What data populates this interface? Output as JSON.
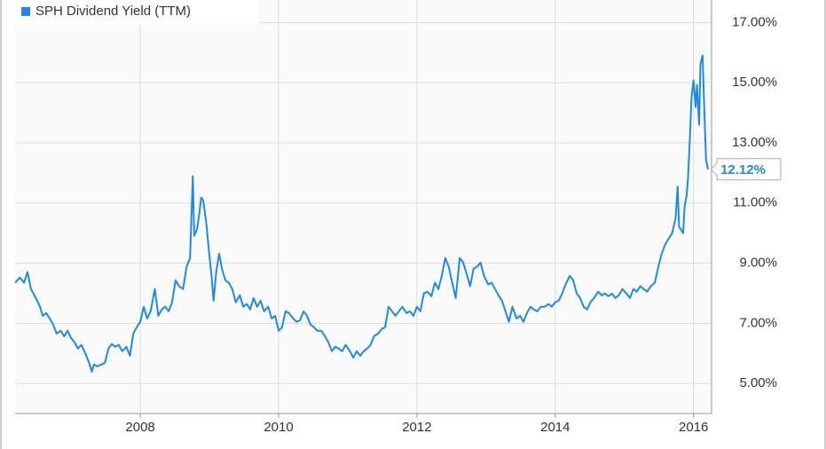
{
  "chart_data": {
    "type": "line",
    "grid": true,
    "legend_position": "top-left",
    "xlim": [
      2006.19,
      2016.26
    ],
    "xticks": [
      2008,
      2010,
      2012,
      2014,
      2016
    ],
    "ylim": [
      4,
      17.75
    ],
    "yticks": [
      {
        "value": 5,
        "label": "5.00%"
      },
      {
        "value": 7,
        "label": "7.00%"
      },
      {
        "value": 9,
        "label": "9.00%"
      },
      {
        "value": 11,
        "label": "11.00%"
      },
      {
        "value": 13,
        "label": "13.00%"
      },
      {
        "value": 15,
        "label": "15.00%"
      },
      {
        "value": 17,
        "label": "17.00%"
      }
    ],
    "annotation": {
      "x": 2016.21,
      "y": 12.12,
      "label": "12.12%"
    },
    "x": [
      2006.19,
      2006.26,
      2006.32,
      2006.37,
      2006.42,
      2006.49,
      2006.55,
      2006.59,
      2006.64,
      2006.69,
      2006.74,
      2006.79,
      2006.85,
      2006.9,
      2006.95,
      2007.0,
      2007.05,
      2007.1,
      2007.15,
      2007.21,
      2007.26,
      2007.3,
      2007.33,
      2007.38,
      2007.44,
      2007.49,
      2007.54,
      2007.59,
      2007.64,
      2007.69,
      2007.74,
      2007.8,
      2007.85,
      2007.9,
      2007.95,
      2008.0,
      2008.05,
      2008.1,
      2008.15,
      2008.21,
      2008.26,
      2008.31,
      2008.36,
      2008.41,
      2008.46,
      2008.51,
      2008.56,
      2008.62,
      2008.67,
      2008.72,
      2008.76,
      2008.78,
      2008.82,
      2008.85,
      2008.88,
      2008.91,
      2008.95,
      2008.99,
      2009.03,
      2009.06,
      2009.1,
      2009.14,
      2009.18,
      2009.23,
      2009.28,
      2009.33,
      2009.38,
      2009.44,
      2009.49,
      2009.54,
      2009.59,
      2009.64,
      2009.69,
      2009.74,
      2009.79,
      2009.85,
      2009.9,
      2009.95,
      2010.0,
      2010.05,
      2010.1,
      2010.15,
      2010.21,
      2010.26,
      2010.31,
      2010.36,
      2010.41,
      2010.46,
      2010.51,
      2010.56,
      2010.62,
      2010.67,
      2010.72,
      2010.77,
      2010.82,
      2010.87,
      2010.92,
      2010.97,
      2011.03,
      2011.08,
      2011.13,
      2011.18,
      2011.23,
      2011.28,
      2011.33,
      2011.38,
      2011.44,
      2011.49,
      2011.54,
      2011.59,
      2011.64,
      2011.69,
      2011.74,
      2011.79,
      2011.85,
      2011.9,
      2011.95,
      2012.0,
      2012.05,
      2012.1,
      2012.15,
      2012.21,
      2012.26,
      2012.31,
      2012.36,
      2012.41,
      2012.46,
      2012.51,
      2012.56,
      2012.62,
      2012.67,
      2012.72,
      2012.77,
      2012.82,
      2012.87,
      2012.92,
      2012.97,
      2013.03,
      2013.08,
      2013.13,
      2013.18,
      2013.23,
      2013.28,
      2013.33,
      2013.38,
      2013.44,
      2013.49,
      2013.54,
      2013.59,
      2013.64,
      2013.69,
      2013.74,
      2013.79,
      2013.85,
      2013.9,
      2013.95,
      2014.0,
      2014.05,
      2014.1,
      2014.15,
      2014.21,
      2014.26,
      2014.31,
      2014.36,
      2014.41,
      2014.46,
      2014.51,
      2014.56,
      2014.62,
      2014.67,
      2014.72,
      2014.77,
      2014.82,
      2014.87,
      2014.92,
      2014.97,
      2015.03,
      2015.08,
      2015.13,
      2015.18,
      2015.23,
      2015.28,
      2015.33,
      2015.38,
      2015.44,
      2015.49,
      2015.54,
      2015.59,
      2015.64,
      2015.69,
      2015.74,
      2015.77,
      2015.79,
      2015.85,
      2015.87,
      2015.9,
      2015.92,
      2015.95,
      2015.97,
      2016.0,
      2016.03,
      2016.05,
      2016.08,
      2016.1,
      2016.13,
      2016.15,
      2016.18,
      2016.21
    ],
    "series": [
      {
        "name": "SPH Dividend Yield (TTM)",
        "color": "#1f8ae6",
        "values": [
          8.35,
          8.52,
          8.35,
          8.7,
          8.14,
          7.84,
          7.55,
          7.25,
          7.34,
          7.16,
          6.96,
          6.66,
          6.75,
          6.57,
          6.75,
          6.51,
          6.37,
          6.16,
          6.28,
          5.98,
          5.69,
          5.39,
          5.63,
          5.57,
          5.63,
          5.69,
          6.16,
          6.31,
          6.22,
          6.28,
          6.07,
          6.22,
          5.92,
          6.66,
          6.87,
          7.05,
          7.55,
          7.16,
          7.4,
          8.14,
          7.25,
          7.46,
          7.55,
          7.4,
          7.7,
          8.43,
          8.23,
          8.14,
          8.88,
          9.17,
          11.89,
          9.91,
          10.12,
          10.59,
          11.18,
          11.09,
          10.41,
          9.47,
          8.58,
          7.75,
          8.73,
          9.32,
          8.82,
          8.43,
          8.35,
          8.14,
          7.7,
          7.93,
          7.55,
          7.64,
          7.46,
          7.84,
          7.55,
          7.75,
          7.4,
          7.55,
          7.16,
          7.25,
          6.75,
          6.87,
          7.4,
          7.34,
          7.16,
          7.05,
          7.1,
          7.4,
          7.25,
          6.96,
          6.87,
          6.75,
          6.75,
          6.57,
          6.37,
          6.07,
          6.22,
          6.16,
          6.07,
          6.28,
          6.07,
          5.86,
          6.07,
          5.92,
          6.07,
          6.16,
          6.28,
          6.57,
          6.66,
          6.81,
          6.87,
          7.55,
          7.4,
          7.25,
          7.4,
          7.55,
          7.34,
          7.4,
          7.25,
          7.55,
          7.4,
          7.99,
          8.05,
          7.9,
          8.35,
          8.14,
          8.58,
          9.17,
          8.88,
          8.35,
          7.84,
          9.17,
          9.02,
          8.64,
          8.23,
          8.82,
          8.88,
          9.02,
          8.58,
          8.29,
          8.35,
          8.14,
          7.93,
          7.75,
          7.4,
          7.05,
          7.55,
          7.16,
          7.25,
          7.05,
          7.34,
          7.55,
          7.46,
          7.4,
          7.55,
          7.55,
          7.64,
          7.55,
          7.7,
          7.75,
          7.99,
          8.29,
          8.58,
          8.43,
          7.99,
          7.84,
          7.55,
          7.46,
          7.7,
          7.84,
          8.05,
          7.93,
          7.99,
          7.9,
          7.99,
          7.84,
          7.93,
          8.14,
          7.99,
          7.84,
          8.14,
          8.05,
          8.23,
          8.14,
          8.05,
          8.23,
          8.35,
          8.88,
          9.32,
          9.62,
          9.82,
          10.0,
          10.5,
          11.54,
          10.21,
          10.0,
          10.89,
          11.24,
          11.83,
          13.31,
          14.49,
          15.08,
          14.19,
          14.93,
          13.6,
          15.61,
          15.91,
          14.49,
          12.42,
          12.12
        ]
      }
    ]
  }
}
